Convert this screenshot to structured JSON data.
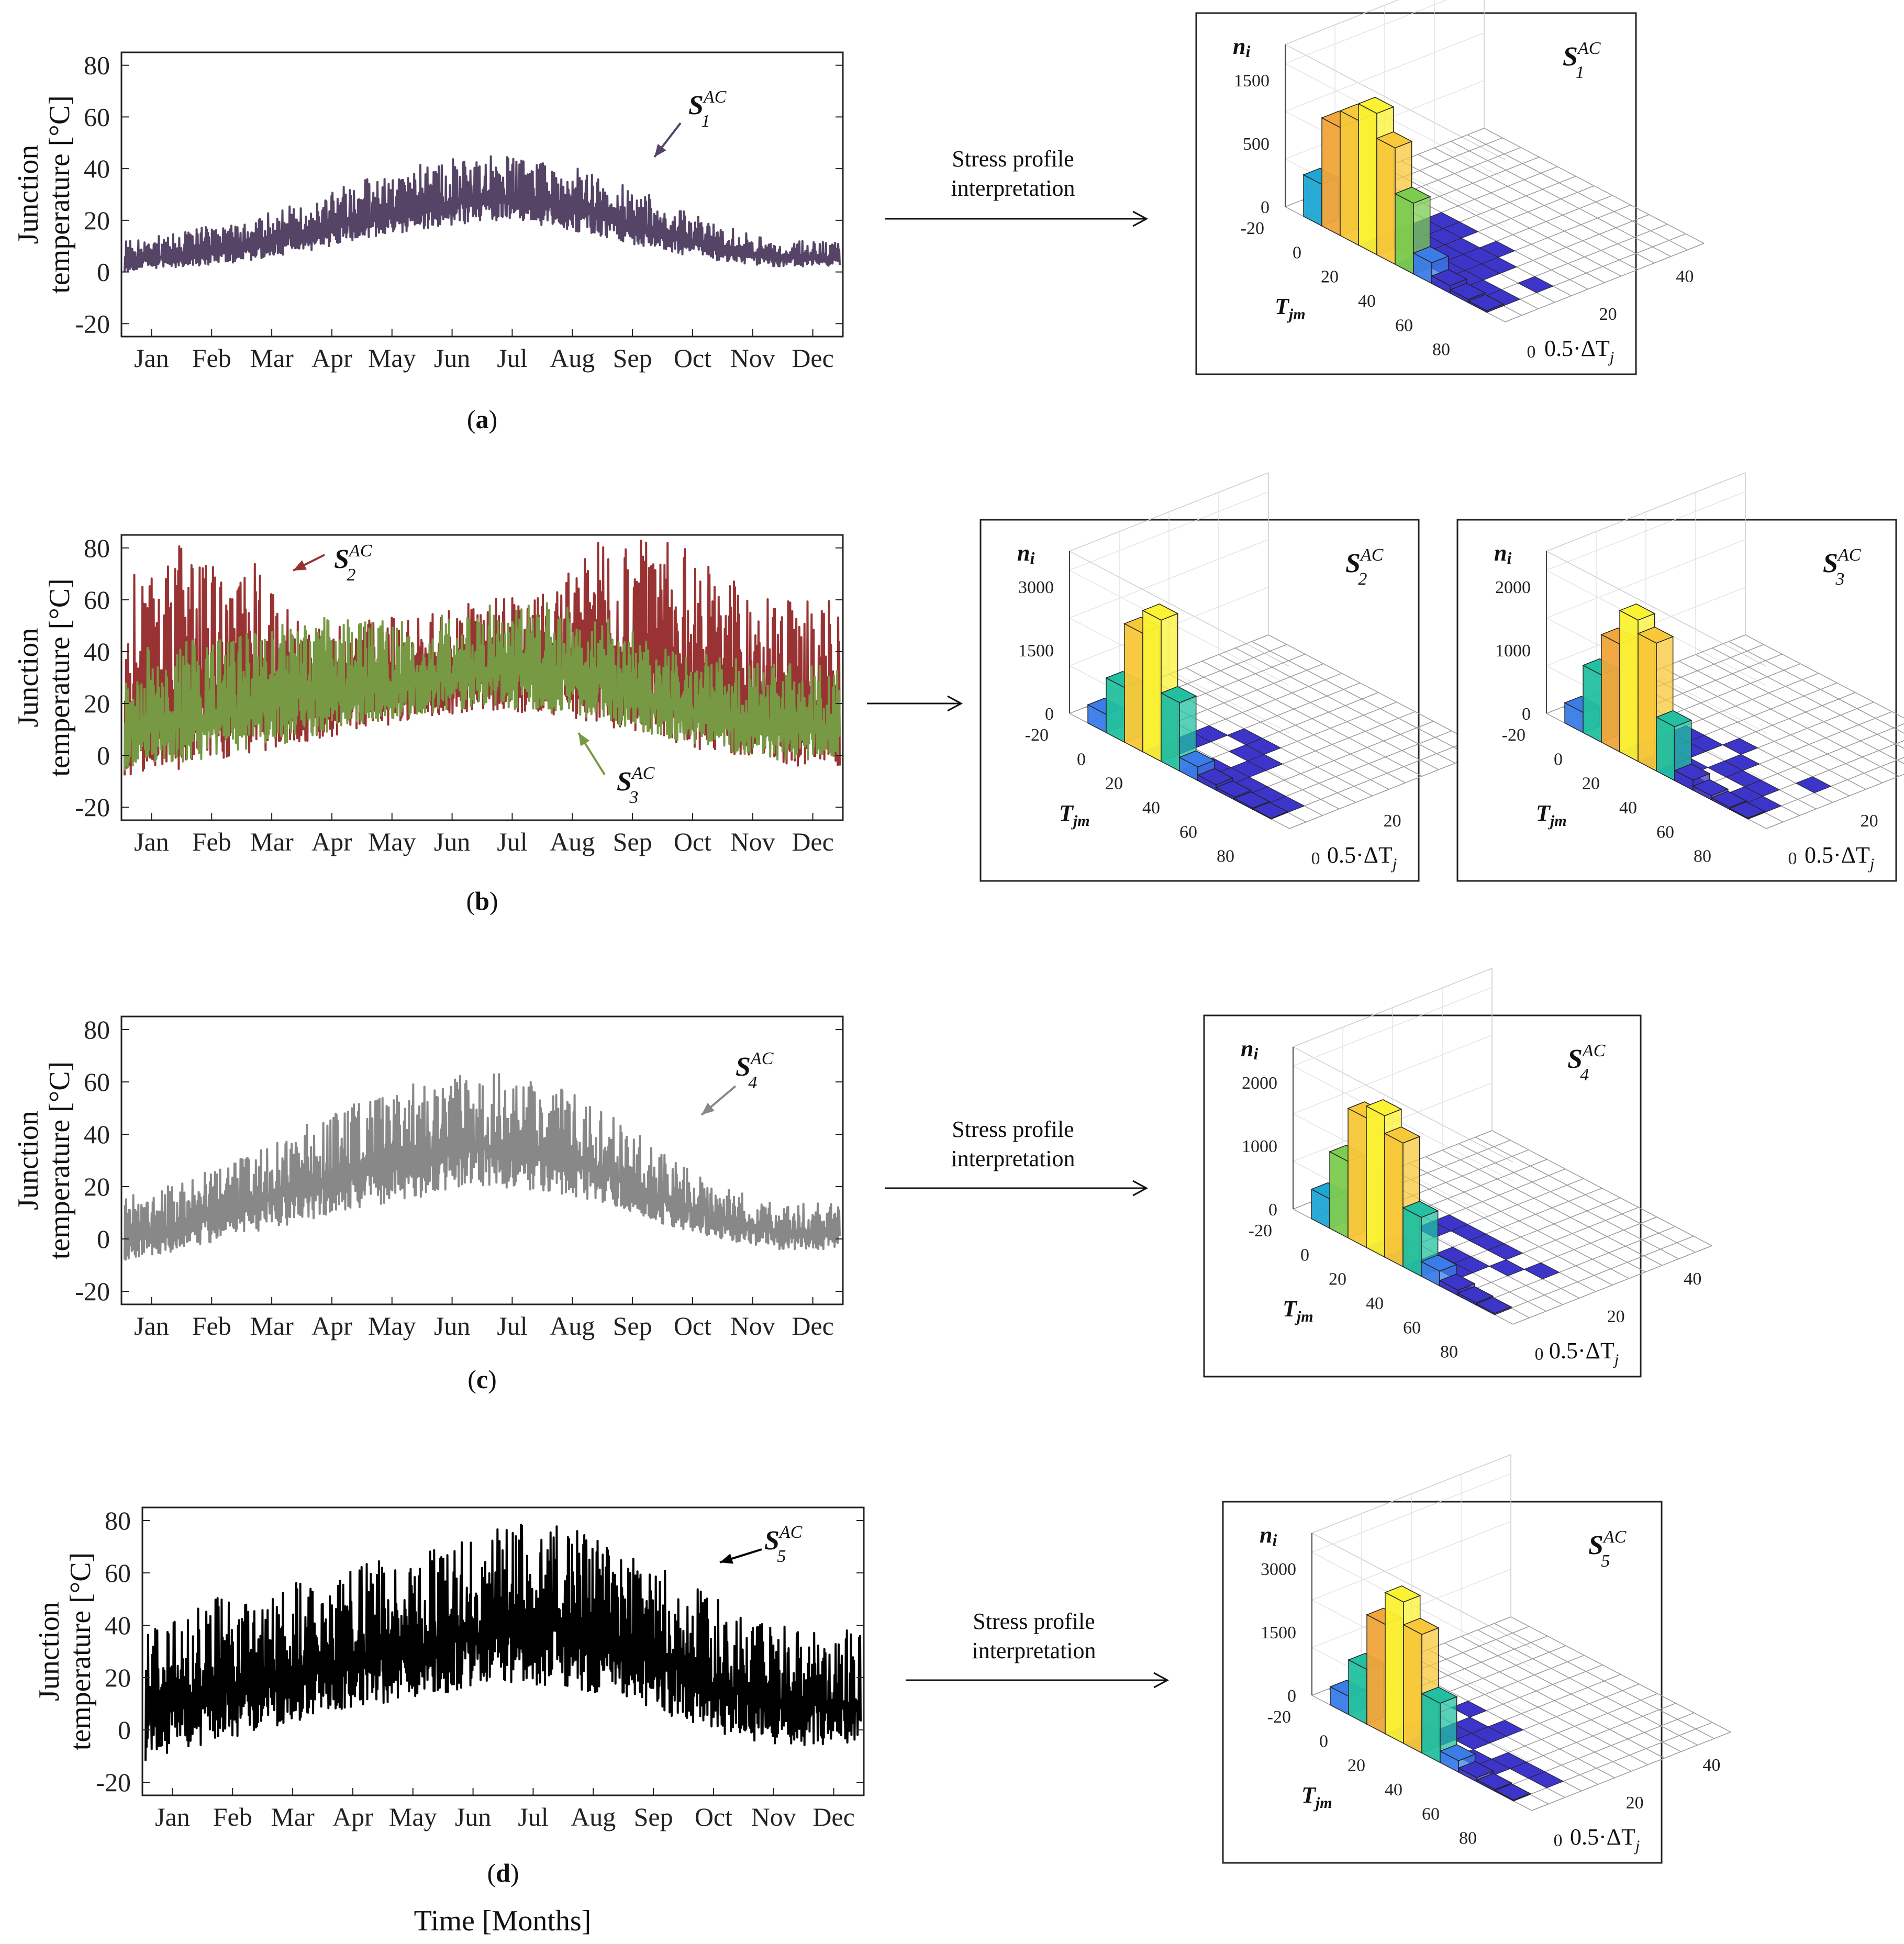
{
  "figure": {
    "x_axis_label": "Time [Months]",
    "y_axis_label_line1": "Junction",
    "y_axis_label_line2": "temperature [°C]",
    "arrow_text_line1": "Stress profile",
    "arrow_text_line2": "interpretation",
    "hist_z_label": "n",
    "hist_z_sub": "i",
    "hist_x_label": "T",
    "hist_x_sub": "jm",
    "hist_y_label": "0.5·ΔT",
    "hist_y_sub": "j",
    "series_main": "S",
    "series_sup": "AC"
  },
  "chart_data": [
    {
      "type": "line",
      "panel": "a",
      "caption_letter": "a",
      "title": "",
      "xlabel": "",
      "ylabel": "Junction temperature [°C]",
      "ylim": [
        -25,
        85
      ],
      "yticks": [
        "80",
        "60",
        "40",
        "20",
        "0",
        "-20"
      ],
      "categories": [
        "Jan",
        "Feb",
        "Mar",
        "Apr",
        "May",
        "Jun",
        "Jul",
        "Aug",
        "Sep",
        "Oct",
        "Nov",
        "Dec"
      ],
      "series": [
        {
          "name": "S1AC",
          "label_sub": "1",
          "color": "#554466",
          "monthly_low": [
            0,
            2,
            4,
            8,
            12,
            16,
            20,
            18,
            14,
            8,
            4,
            2
          ],
          "monthly_high": [
            12,
            16,
            20,
            28,
            36,
            42,
            46,
            44,
            38,
            28,
            18,
            12
          ]
        }
      ],
      "histogram": {
        "type": "bar3d",
        "zticks": [
          "1500",
          "500",
          "0"
        ],
        "xticks": [
          "-20",
          "0",
          "20",
          "40",
          "60",
          "80"
        ],
        "yticks": [
          "0",
          "20",
          "40"
        ],
        "values": [
          500,
          1300,
          1500,
          1700,
          1400,
          850,
          250,
          90,
          40,
          20
        ]
      }
    },
    {
      "type": "line",
      "panel": "b",
      "caption_letter": "b",
      "title": "",
      "xlabel": "",
      "ylabel": "Junction temperature [°C]",
      "ylim": [
        -25,
        85
      ],
      "yticks": [
        "80",
        "60",
        "40",
        "20",
        "0",
        "-20"
      ],
      "categories": [
        "Jan",
        "Feb",
        "Mar",
        "Apr",
        "May",
        "Jun",
        "Jul",
        "Aug",
        "Sep",
        "Oct",
        "Nov",
        "Dec"
      ],
      "series": [
        {
          "name": "S2AC",
          "label_sub": "2",
          "color": "#993333",
          "monthly_low": [
            -8,
            -5,
            0,
            5,
            10,
            14,
            18,
            16,
            12,
            6,
            0,
            -4
          ],
          "monthly_high": [
            70,
            82,
            80,
            50,
            52,
            55,
            60,
            62,
            84,
            86,
            70,
            60
          ]
        },
        {
          "name": "S3AC",
          "label_sub": "3",
          "color": "#779944",
          "monthly_low": [
            -6,
            -3,
            2,
            6,
            12,
            15,
            19,
            17,
            13,
            7,
            2,
            -2
          ],
          "monthly_high": [
            40,
            44,
            48,
            55,
            52,
            52,
            58,
            62,
            56,
            42,
            38,
            36
          ]
        }
      ],
      "histograms": [
        {
          "type": "bar3d",
          "label_sub": "2",
          "zticks": [
            "3000",
            "1500",
            "0"
          ],
          "xticks": [
            "-20",
            "0",
            "20",
            "40",
            "60",
            "80"
          ],
          "yticks": [
            "0",
            "20",
            "40"
          ],
          "values": [
            400,
            1200,
            2600,
            3100,
            1500,
            300,
            120,
            60,
            30,
            15
          ]
        },
        {
          "type": "bar3d",
          "label_sub": "3",
          "zticks": [
            "2000",
            "1000",
            "0"
          ],
          "xticks": [
            "-20",
            "0",
            "20",
            "40",
            "60",
            "80"
          ],
          "yticks": [
            "0",
            "20",
            "40"
          ],
          "values": [
            300,
            1000,
            1600,
            2100,
            1900,
            800,
            150,
            60,
            30,
            15
          ]
        }
      ]
    },
    {
      "type": "line",
      "panel": "c",
      "caption_letter": "c",
      "title": "",
      "xlabel": "",
      "ylabel": "Junction temperature [°C]",
      "ylim": [
        -25,
        85
      ],
      "yticks": [
        "80",
        "60",
        "40",
        "20",
        "0",
        "-20"
      ],
      "categories": [
        "Jan",
        "Feb",
        "Mar",
        "Apr",
        "May",
        "Jun",
        "Jul",
        "Aug",
        "Sep",
        "Oct",
        "Nov",
        "Dec"
      ],
      "series": [
        {
          "name": "S4AC",
          "label_sub": "4",
          "color": "#888888",
          "monthly_low": [
            -8,
            -4,
            2,
            6,
            12,
            16,
            20,
            18,
            14,
            6,
            0,
            -4
          ],
          "monthly_high": [
            16,
            22,
            32,
            44,
            54,
            60,
            64,
            62,
            50,
            34,
            20,
            14
          ]
        }
      ],
      "histogram": {
        "type": "bar3d",
        "zticks": [
          "2000",
          "1000",
          "0"
        ],
        "xticks": [
          "-20",
          "0",
          "20",
          "40",
          "60",
          "80"
        ],
        "yticks": [
          "0",
          "20",
          "40"
        ],
        "values": [
          500,
          1300,
          2200,
          2400,
          2100,
          1000,
          250,
          90,
          40,
          20
        ]
      }
    },
    {
      "type": "line",
      "panel": "d",
      "caption_letter": "d",
      "title": "",
      "xlabel": "Time [Months]",
      "ylabel": "Junction temperature [°C]",
      "ylim": [
        -25,
        85
      ],
      "yticks": [
        "80",
        "60",
        "40",
        "20",
        "0",
        "-20"
      ],
      "categories": [
        "Jan",
        "Feb",
        "Mar",
        "Apr",
        "May",
        "Jun",
        "Jul",
        "Aug",
        "Sep",
        "Oct",
        "Nov",
        "Dec"
      ],
      "series": [
        {
          "name": "S5AC",
          "label_sub": "5",
          "color": "#000000",
          "monthly_low": [
            -12,
            -6,
            0,
            6,
            10,
            14,
            18,
            16,
            12,
            4,
            -4,
            -6
          ],
          "monthly_high": [
            40,
            50,
            52,
            60,
            65,
            70,
            78,
            80,
            68,
            58,
            45,
            40
          ]
        }
      ],
      "histogram": {
        "type": "bar3d",
        "zticks": [
          "3000",
          "1500",
          "0"
        ],
        "xticks": [
          "-20",
          "0",
          "20",
          "40",
          "60",
          "80"
        ],
        "yticks": [
          "0",
          "20",
          "40"
        ],
        "values": [
          400,
          1200,
          2400,
          3100,
          2600,
          1300,
          250,
          90,
          40,
          20
        ]
      }
    }
  ]
}
